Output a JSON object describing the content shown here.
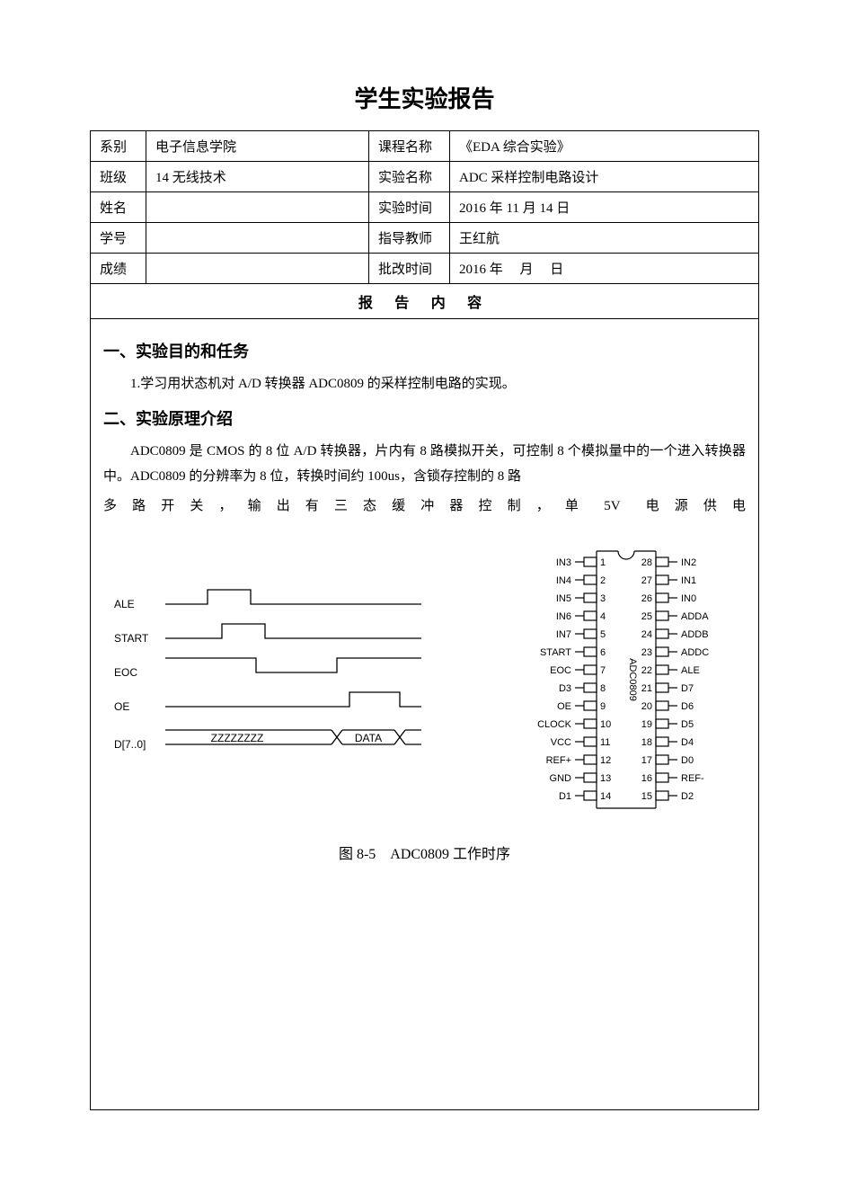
{
  "doc_title": "学生实验报告",
  "info_table": {
    "rows": [
      {
        "l1": "系别",
        "v1": "电子信息学院",
        "l2": "课程名称",
        "v2": "《EDA 综合实验》"
      },
      {
        "l1": "班级",
        "v1": "14 无线技术",
        "l2": "实验名称",
        "v2": "ADC 采样控制电路设计"
      },
      {
        "l1": "姓名",
        "v1": "",
        "l2": "实验时间",
        "v2": "2016 年 11 月 14 日"
      },
      {
        "l1": "学号",
        "v1": "",
        "l2": "指导教师",
        "v2": "王红航"
      },
      {
        "l1": "成绩",
        "v1": "",
        "l2": "批改时间",
        "v2": "2016 年　 月　 日"
      }
    ]
  },
  "section_header": "报 告 内 容",
  "sec1": {
    "heading": "一、实验目的和任务",
    "p1": "1.学习用状态机对 A/D 转换器 ADC0809 的采样控制电路的实现。"
  },
  "sec2": {
    "heading": "二、实验原理介绍",
    "p1": "ADC0809 是 CMOS 的 8 位 A/D 转换器，片内有 8 路模拟开关，可控制 8 个模拟量中的一个进入转换器中。ADC0809 的分辨率为 8 位，转换时间约 100us，含锁存控制的 8 路",
    "p2": "多 路 开 关 ， 输 出 有 三 态 缓 冲 器 控 制 ， 单　5V　电 源 供 电"
  },
  "timing": {
    "signals": [
      "ALE",
      "START",
      "EOC",
      "OE",
      "D[7..0]"
    ],
    "data_bus_z": "ZZZZZZZZ",
    "data_bus_v": "DATA",
    "stroke": "#000000",
    "font_size": 12
  },
  "pinout": {
    "chip_name": "ADC0809",
    "left_pins": [
      {
        "n": 1,
        "label": "IN3"
      },
      {
        "n": 2,
        "label": "IN4"
      },
      {
        "n": 3,
        "label": "IN5"
      },
      {
        "n": 4,
        "label": "IN6"
      },
      {
        "n": 5,
        "label": "IN7"
      },
      {
        "n": 6,
        "label": "START"
      },
      {
        "n": 7,
        "label": "EOC"
      },
      {
        "n": 8,
        "label": "D3"
      },
      {
        "n": 9,
        "label": "OE"
      },
      {
        "n": 10,
        "label": "CLOCK"
      },
      {
        "n": 11,
        "label": "VCC"
      },
      {
        "n": 12,
        "label": "REF+"
      },
      {
        "n": 13,
        "label": "GND"
      },
      {
        "n": 14,
        "label": "D1"
      }
    ],
    "right_pins": [
      {
        "n": 28,
        "label": "IN2"
      },
      {
        "n": 27,
        "label": "IN1"
      },
      {
        "n": 26,
        "label": "IN0"
      },
      {
        "n": 25,
        "label": "ADDA"
      },
      {
        "n": 24,
        "label": "ADDB"
      },
      {
        "n": 23,
        "label": "ADDC"
      },
      {
        "n": 22,
        "label": "ALE"
      },
      {
        "n": 21,
        "label": "D7"
      },
      {
        "n": 20,
        "label": "D6"
      },
      {
        "n": 19,
        "label": "D5"
      },
      {
        "n": 18,
        "label": "D4"
      },
      {
        "n": 17,
        "label": "D0"
      },
      {
        "n": 16,
        "label": "REF-"
      },
      {
        "n": 15,
        "label": "D2"
      }
    ],
    "stroke": "#000000",
    "font_size": 11
  },
  "caption": "图 8-5　ADC0809 工作时序"
}
